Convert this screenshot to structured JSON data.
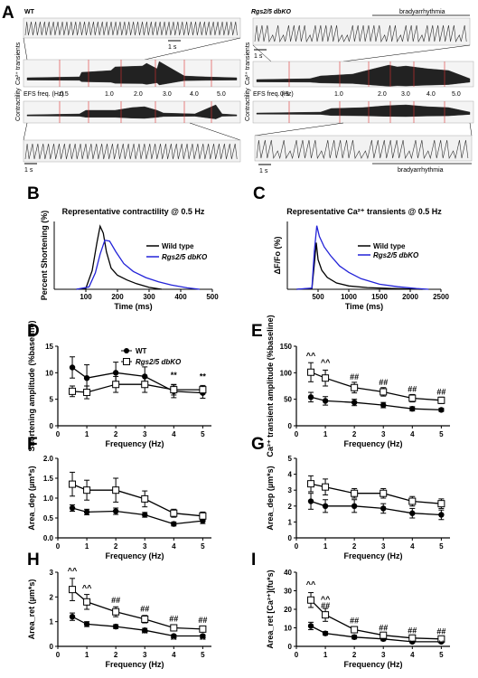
{
  "panel_labels": [
    "A",
    "B",
    "C",
    "D",
    "E",
    "F",
    "G",
    "H",
    "I"
  ],
  "panel_a": {
    "left": {
      "genotype": "WT",
      "scale_bar": "1 s",
      "trace_label_ca": "Ca²⁺ transients",
      "trace_label_contract": "Contractility",
      "efs_label": "EFS freq. (Hz)",
      "freqs": [
        "0.5",
        "1.0",
        "2.0",
        "3.0",
        "4.0",
        "5.0"
      ],
      "bottom_scale": "1 s"
    },
    "right": {
      "genotype": "Rgs2/5 dbKO",
      "bradyarrhythmia_top": "bradyarrhythmia",
      "scale_bar": "1 s",
      "trace_label_ca": "Ca²⁺ transients",
      "trace_label_contract": "Contractility",
      "efs_label": "EFS freq. (Hz)",
      "freqs": [
        "0.5",
        "1.0",
        "2.0",
        "3.0",
        "4.0",
        "5.0"
      ],
      "bottom_scale": "1 s",
      "bradyarrhythmia_bottom": "bradyarrhythmia"
    }
  },
  "legend": {
    "wt": "Wild type",
    "ko": "Rgs2/5 dbKO",
    "wt_short": "WT"
  },
  "chart_data": [
    {
      "panel": "B",
      "type": "line",
      "title": "Representative contractility @ 0.5 Hz",
      "xlabel": "Time (ms)",
      "ylabel": "Percent Shortening (%)",
      "xlim": [
        0,
        500
      ],
      "xticks": [
        "100",
        "200",
        "300",
        "400",
        "500"
      ],
      "series": [
        {
          "name": "Wild type",
          "color": "#000000",
          "x": [
            70,
            100,
            120,
            135,
            145,
            155,
            165,
            180,
            200,
            230,
            260,
            300,
            340
          ],
          "y": [
            0,
            0.2,
            4,
            10,
            13.5,
            12,
            8,
            4.5,
            3,
            2,
            1.2,
            0.4,
            0
          ]
        },
        {
          "name": "Rgs2/5 dbKO",
          "color": "#2323d8",
          "x": [
            70,
            110,
            130,
            145,
            160,
            175,
            195,
            220,
            250,
            290,
            330,
            370,
            420,
            460
          ],
          "y": [
            0,
            0.5,
            3.5,
            7.5,
            10.5,
            10.3,
            8,
            5.5,
            3.8,
            2.5,
            1.6,
            0.9,
            0.3,
            0
          ]
        }
      ]
    },
    {
      "panel": "C",
      "type": "line",
      "title": "Representative Ca²⁺ transients @ 0.5 Hz",
      "xlabel": "Time (ms)",
      "ylabel": "ΔF/Fo (%)",
      "xlim": [
        0,
        2500
      ],
      "xticks": [
        "500",
        "1000",
        "1500",
        "2000",
        "2500"
      ],
      "series": [
        {
          "name": "Wild type",
          "color": "#000000",
          "x": [
            150,
            400,
            440,
            470,
            500,
            560,
            650,
            800,
            1000,
            1300,
            1700,
            2200
          ],
          "y": [
            0,
            0.02,
            0.6,
            1.1,
            0.7,
            0.45,
            0.28,
            0.15,
            0.08,
            0.04,
            0.02,
            0
          ]
        },
        {
          "name": "Rgs2/5 dbKO",
          "color": "#2323d8",
          "x": [
            150,
            400,
            440,
            480,
            520,
            600,
            700,
            850,
            1000,
            1200,
            1500,
            1800,
            2100,
            2300
          ],
          "y": [
            0,
            0.03,
            0.9,
            1.5,
            1.25,
            1.0,
            0.8,
            0.55,
            0.4,
            0.25,
            0.12,
            0.06,
            0.02,
            0
          ]
        }
      ]
    },
    {
      "panel": "D",
      "type": "line",
      "xlabel": "Frequency (Hz)",
      "ylabel": "Shortening amplitude (%baseline)",
      "xlim": [
        0,
        5.3
      ],
      "ylim": [
        0,
        15
      ],
      "yticks": [
        0,
        5,
        10,
        15
      ],
      "xticks": [
        0,
        1,
        2,
        3,
        4,
        5
      ],
      "x": [
        0.5,
        1,
        2,
        3,
        4,
        5
      ],
      "series": [
        {
          "name": "WT",
          "marker": "filled",
          "y": [
            11,
            9,
            10,
            9.3,
            6.5,
            6.2
          ],
          "err": [
            2,
            2.5,
            2,
            1.8,
            1.2,
            1
          ]
        },
        {
          "name": "Rgs2/5 dbKO",
          "marker": "open",
          "y": [
            6.5,
            6.3,
            7.8,
            7.8,
            6.8,
            6.8
          ],
          "err": [
            1,
            1.2,
            1.5,
            1.5,
            1,
            0.8
          ]
        }
      ],
      "annotations": [
        {
          "x": 4,
          "y": 9,
          "text": "**"
        },
        {
          "x": 5,
          "y": 8.8,
          "text": "**"
        }
      ]
    },
    {
      "panel": "E",
      "type": "line",
      "xlabel": "Frequency (Hz)",
      "ylabel": "Ca²⁺ transient amplitude (%baseline)",
      "xlim": [
        0,
        5.3
      ],
      "ylim": [
        0,
        150
      ],
      "yticks": [
        0,
        50,
        100,
        150
      ],
      "xticks": [
        0,
        1,
        2,
        3,
        4,
        5
      ],
      "x": [
        0.5,
        1,
        2,
        3,
        4,
        5
      ],
      "series": [
        {
          "name": "WT",
          "marker": "filled",
          "y": [
            54,
            47,
            44,
            39,
            32,
            30
          ],
          "err": [
            9,
            8,
            6,
            5,
            4,
            3
          ]
        },
        {
          "name": "Rgs2/5 dbKO",
          "marker": "open",
          "y": [
            101,
            90,
            72,
            64,
            52,
            48
          ],
          "err": [
            18,
            15,
            10,
            8,
            7,
            6
          ]
        }
      ],
      "annotations": [
        {
          "x": 0.5,
          "y": 127,
          "text": "^^"
        },
        {
          "x": 1,
          "y": 114,
          "text": "^^"
        },
        {
          "x": 2,
          "y": 87,
          "text": "##"
        },
        {
          "x": 3,
          "y": 77,
          "text": "##"
        },
        {
          "x": 4,
          "y": 64,
          "text": "##"
        },
        {
          "x": 5,
          "y": 59,
          "text": "##"
        }
      ]
    },
    {
      "panel": "F",
      "type": "line",
      "xlabel": "Frequency (Hz)",
      "ylabel": "Area_dep (µm*s)",
      "xlim": [
        0,
        5.3
      ],
      "ylim": [
        0,
        2.0
      ],
      "yticks": [
        "0.0",
        "0.5",
        "1.0",
        "1.5",
        "2.0"
      ],
      "xticks": [
        0,
        1,
        2,
        3,
        4,
        5
      ],
      "x": [
        0.5,
        1,
        2,
        3,
        4,
        5
      ],
      "series": [
        {
          "name": "WT",
          "marker": "filled",
          "y": [
            0.75,
            0.65,
            0.67,
            0.58,
            0.35,
            0.43
          ],
          "err": [
            0.08,
            0.07,
            0.08,
            0.06,
            0.05,
            0.07
          ]
        },
        {
          "name": "Rgs2/5 dbKO",
          "marker": "open",
          "y": [
            1.35,
            1.2,
            1.2,
            0.98,
            0.62,
            0.55
          ],
          "err": [
            0.3,
            0.25,
            0.3,
            0.2,
            0.1,
            0.1
          ]
        }
      ]
    },
    {
      "panel": "G",
      "type": "line",
      "xlabel": "Frequency (Hz)",
      "ylabel": "Area_dep (µm*s)",
      "xlim": [
        0,
        5.3
      ],
      "ylim": [
        0,
        5
      ],
      "yticks": [
        0,
        1,
        2,
        3,
        4,
        5
      ],
      "xticks": [
        0,
        1,
        2,
        3,
        4,
        5
      ],
      "x": [
        0.5,
        1,
        2,
        3,
        4,
        5
      ],
      "series": [
        {
          "name": "WT",
          "marker": "filled",
          "y": [
            2.3,
            2.0,
            2.0,
            1.85,
            1.55,
            1.45
          ],
          "err": [
            0.5,
            0.4,
            0.4,
            0.3,
            0.3,
            0.3
          ]
        },
        {
          "name": "Rgs2/5 dbKO",
          "marker": "open",
          "y": [
            3.4,
            3.2,
            2.8,
            2.8,
            2.3,
            2.15
          ],
          "err": [
            0.5,
            0.5,
            0.3,
            0.3,
            0.3,
            0.3
          ]
        }
      ]
    },
    {
      "panel": "H",
      "type": "line",
      "xlabel": "Frequency (Hz)",
      "ylabel": "Area_ret (µm*s)",
      "xlim": [
        0,
        5.3
      ],
      "ylim": [
        0,
        3
      ],
      "yticks": [
        0,
        1,
        2,
        3
      ],
      "xticks": [
        0,
        1,
        2,
        3,
        4,
        5
      ],
      "x": [
        0.5,
        1,
        2,
        3,
        4,
        5
      ],
      "series": [
        {
          "name": "WT",
          "marker": "filled",
          "y": [
            1.2,
            0.9,
            0.8,
            0.65,
            0.42,
            0.42
          ],
          "err": [
            0.15,
            0.1,
            0.08,
            0.08,
            0.05,
            0.05
          ]
        },
        {
          "name": "Rgs2/5 dbKO",
          "marker": "open",
          "y": [
            2.3,
            1.8,
            1.4,
            1.1,
            0.75,
            0.7
          ],
          "err": [
            0.45,
            0.3,
            0.2,
            0.15,
            0.1,
            0.1
          ]
        }
      ],
      "annotations": [
        {
          "x": 0.5,
          "y": 2.95,
          "text": "^^"
        },
        {
          "x": 1,
          "y": 2.25,
          "text": "^^"
        },
        {
          "x": 2,
          "y": 1.75,
          "text": "##"
        },
        {
          "x": 3,
          "y": 1.4,
          "text": "##"
        },
        {
          "x": 4,
          "y": 1.0,
          "text": "##"
        },
        {
          "x": 5,
          "y": 0.95,
          "text": "##"
        },
        {
          "x": 3,
          "y": 0.4,
          "text": "**"
        },
        {
          "x": 4,
          "y": 0.15,
          "text": "**"
        },
        {
          "x": 5,
          "y": 0.15,
          "text": "**"
        }
      ]
    },
    {
      "panel": "I",
      "type": "line",
      "xlabel": "Frequency (Hz)",
      "ylabel": "Area_ret [Ca²⁺](fu*s)",
      "xlim": [
        0,
        5.3
      ],
      "ylim": [
        0,
        40
      ],
      "yticks": [
        0,
        10,
        20,
        30,
        40
      ],
      "xticks": [
        0,
        1,
        2,
        3,
        4,
        5
      ],
      "x": [
        0.5,
        1,
        2,
        3,
        4,
        5
      ],
      "series": [
        {
          "name": "WT",
          "marker": "filled",
          "y": [
            11,
            7,
            5,
            4,
            2.5,
            2.5
          ],
          "err": [
            2,
            1,
            1,
            0.5,
            0.5,
            0.5
          ]
        },
        {
          "name": "Rgs2/5 dbKO",
          "marker": "open",
          "y": [
            25,
            17,
            9,
            6,
            4.5,
            4
          ],
          "err": [
            4,
            3.5,
            1.5,
            1,
            0.8,
            0.8
          ]
        }
      ],
      "annotations": [
        {
          "x": 0.5,
          "y": 32,
          "text": "^^"
        },
        {
          "x": 1,
          "y": 24,
          "text": "^^"
        },
        {
          "x": 1,
          "y": 20.5,
          "text": "##"
        },
        {
          "x": 2,
          "y": 12.5,
          "text": "##"
        },
        {
          "x": 3,
          "y": 8.5,
          "text": "##"
        },
        {
          "x": 4,
          "y": 7,
          "text": "##"
        },
        {
          "x": 5,
          "y": 6.5,
          "text": "##"
        },
        {
          "x": 3,
          "y": 1.2,
          "text": "**"
        },
        {
          "x": 4,
          "y": 0.1,
          "text": "**"
        },
        {
          "x": 5,
          "y": 0.1,
          "text": "**"
        }
      ]
    }
  ]
}
